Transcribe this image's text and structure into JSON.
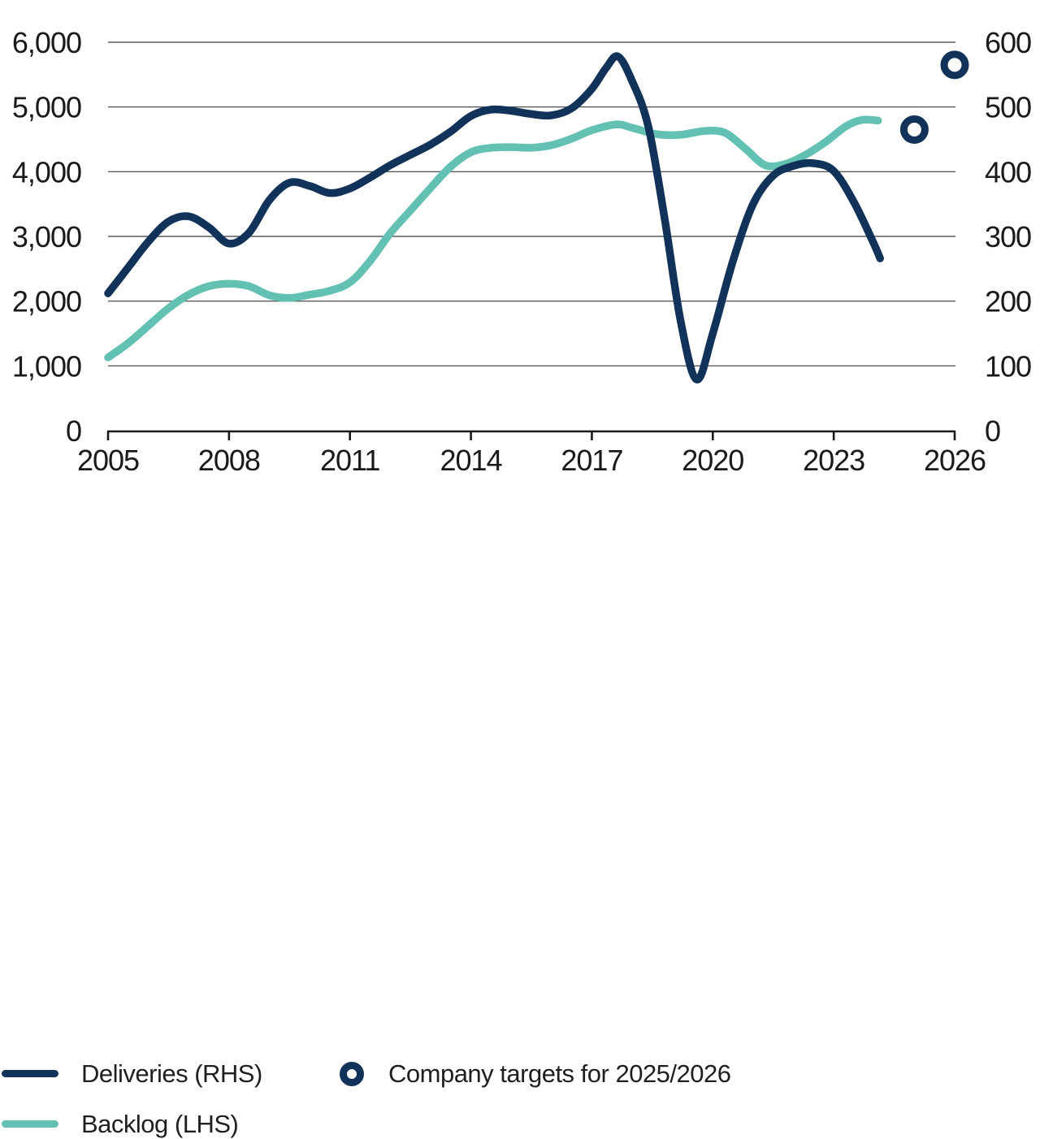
{
  "colors": {
    "navy": "#123359",
    "teal": "#62C1B2",
    "grid": "#3a3a3a",
    "axis": "#1a1a1a",
    "text": "#1f1f1f",
    "background": "#ffffff"
  },
  "chart_data": {
    "type": "line",
    "title": "",
    "grid": "horizontal",
    "x_axis": {
      "range": [
        2005,
        2026
      ],
      "ticks": [
        {
          "value": 2005,
          "label": "2005"
        },
        {
          "value": 2008,
          "label": "2008"
        },
        {
          "value": 2011,
          "label": "2011"
        },
        {
          "value": 2014,
          "label": "2014"
        },
        {
          "value": 2017,
          "label": "2017"
        },
        {
          "value": 2020,
          "label": "2020"
        },
        {
          "value": 2023,
          "label": "2023"
        },
        {
          "value": 2026,
          "label": "2026"
        }
      ]
    },
    "y_axis_left": {
      "range": [
        0,
        6000
      ],
      "ticks": [
        {
          "value": 0,
          "label": "0"
        },
        {
          "value": 1000,
          "label": "1,000"
        },
        {
          "value": 2000,
          "label": "2,000"
        },
        {
          "value": 3000,
          "label": "3,000"
        },
        {
          "value": 4000,
          "label": "4,000"
        },
        {
          "value": 5000,
          "label": "5,000"
        },
        {
          "value": 6000,
          "label": "6,000"
        }
      ]
    },
    "y_axis_right": {
      "range": [
        0,
        600
      ],
      "ticks": [
        {
          "value": 0,
          "label": "0"
        },
        {
          "value": 100,
          "label": "100"
        },
        {
          "value": 200,
          "label": "200"
        },
        {
          "value": 300,
          "label": "300"
        },
        {
          "value": 400,
          "label": "400"
        },
        {
          "value": 500,
          "label": "500"
        },
        {
          "value": 600,
          "label": "600"
        }
      ]
    },
    "series": [
      {
        "name": "Backlog (LHS)",
        "style": "line",
        "axis": "left",
        "color": "#62C1B2",
        "points": [
          [
            2005.0,
            1130
          ],
          [
            2005.5,
            1350
          ],
          [
            2006.0,
            1620
          ],
          [
            2006.5,
            1890
          ],
          [
            2007.0,
            2100
          ],
          [
            2007.5,
            2230
          ],
          [
            2008.0,
            2270
          ],
          [
            2008.5,
            2230
          ],
          [
            2009.0,
            2090
          ],
          [
            2009.5,
            2050
          ],
          [
            2010.0,
            2100
          ],
          [
            2010.5,
            2160
          ],
          [
            2011.0,
            2290
          ],
          [
            2011.5,
            2620
          ],
          [
            2012.0,
            3050
          ],
          [
            2012.5,
            3400
          ],
          [
            2013.0,
            3750
          ],
          [
            2013.5,
            4080
          ],
          [
            2014.0,
            4300
          ],
          [
            2014.5,
            4370
          ],
          [
            2015.0,
            4380
          ],
          [
            2015.5,
            4370
          ],
          [
            2016.0,
            4410
          ],
          [
            2016.5,
            4510
          ],
          [
            2017.0,
            4640
          ],
          [
            2017.6,
            4730
          ],
          [
            2018.0,
            4680
          ],
          [
            2018.6,
            4580
          ],
          [
            2019.2,
            4570
          ],
          [
            2019.8,
            4630
          ],
          [
            2020.3,
            4600
          ],
          [
            2020.8,
            4360
          ],
          [
            2021.3,
            4100
          ],
          [
            2021.8,
            4120
          ],
          [
            2022.3,
            4260
          ],
          [
            2022.8,
            4460
          ],
          [
            2023.3,
            4700
          ],
          [
            2023.7,
            4800
          ],
          [
            2024.1,
            4790
          ]
        ]
      },
      {
        "name": "Deliveries (RHS)",
        "style": "line",
        "axis": "right",
        "color": "#123359",
        "points": [
          [
            2005.0,
            212
          ],
          [
            2005.5,
            252
          ],
          [
            2006.0,
            292
          ],
          [
            2006.5,
            323
          ],
          [
            2007.0,
            331
          ],
          [
            2007.5,
            314
          ],
          [
            2008.0,
            289
          ],
          [
            2008.5,
            306
          ],
          [
            2009.0,
            356
          ],
          [
            2009.5,
            383
          ],
          [
            2010.0,
            378
          ],
          [
            2010.5,
            367
          ],
          [
            2011.0,
            374
          ],
          [
            2011.5,
            391
          ],
          [
            2012.0,
            410
          ],
          [
            2012.5,
            426
          ],
          [
            2013.0,
            442
          ],
          [
            2013.5,
            462
          ],
          [
            2014.0,
            486
          ],
          [
            2014.5,
            496
          ],
          [
            2015.0,
            494
          ],
          [
            2015.5,
            489
          ],
          [
            2016.0,
            487
          ],
          [
            2016.5,
            498
          ],
          [
            2017.0,
            528
          ],
          [
            2017.35,
            560
          ],
          [
            2017.65,
            578
          ],
          [
            2018.0,
            540
          ],
          [
            2018.4,
            470
          ],
          [
            2018.8,
            330
          ],
          [
            2019.2,
            170
          ],
          [
            2019.6,
            79
          ],
          [
            2020.0,
            150
          ],
          [
            2020.5,
            262
          ],
          [
            2021.0,
            350
          ],
          [
            2021.5,
            394
          ],
          [
            2022.0,
            409
          ],
          [
            2022.5,
            413
          ],
          [
            2023.0,
            401
          ],
          [
            2023.5,
            353
          ],
          [
            2024.0,
            288
          ],
          [
            2024.15,
            266
          ]
        ]
      },
      {
        "name": "Company targets for 2025/2026",
        "style": "open-circle",
        "axis": "right",
        "color": "#123359",
        "points": [
          [
            2025,
            465
          ],
          [
            2026,
            565
          ]
        ]
      }
    ]
  },
  "legend": {
    "items": [
      {
        "label": "Deliveries (RHS)",
        "swatch": "line",
        "color": "#123359"
      },
      {
        "label": "Backlog (LHS)",
        "swatch": "line",
        "color": "#62C1B2"
      },
      {
        "label": "Company targets for 2025/2026",
        "swatch": "open-circle",
        "color": "#123359"
      }
    ]
  }
}
